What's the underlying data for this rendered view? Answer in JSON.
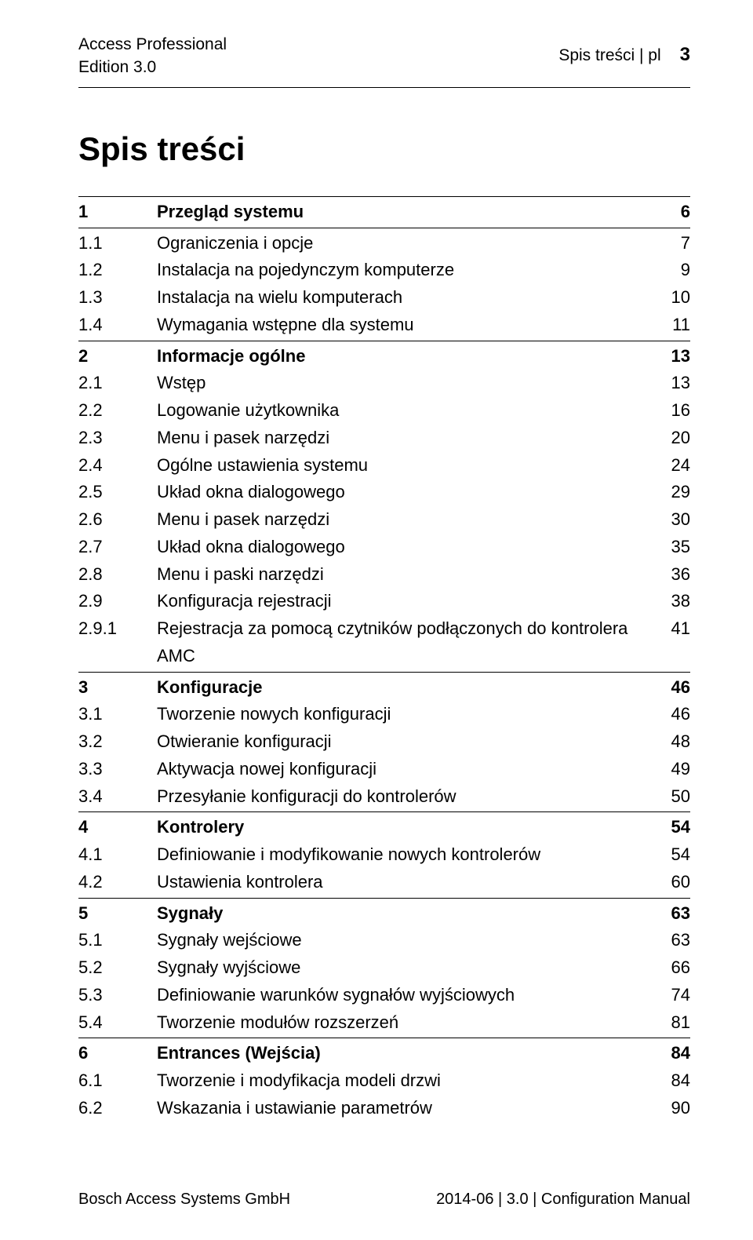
{
  "header": {
    "product_line1": "Access Professional",
    "product_line2": "Edition 3.0",
    "section_label": "Spis treści | pl",
    "page_number": "3"
  },
  "main_title": "Spis treści",
  "toc": [
    {
      "num": "1",
      "label": "Przegląd systemu",
      "page": "6",
      "section": true,
      "rule": "top"
    },
    {
      "num": "1.1",
      "label": "Ograniczenia i opcje",
      "page": "7"
    },
    {
      "num": "1.2",
      "label": "Instalacja na pojedynczym komputerze",
      "page": "9"
    },
    {
      "num": "1.3",
      "label": "Instalacja na wielu komputerach",
      "page": "10"
    },
    {
      "num": "1.4",
      "label": "Wymagania wstępne dla systemu",
      "page": "11"
    },
    {
      "num": "2",
      "label": "Informacje ogólne",
      "page": "13",
      "section": true,
      "rule": "mid"
    },
    {
      "num": "2.1",
      "label": "Wstęp",
      "page": "13"
    },
    {
      "num": "2.2",
      "label": "Logowanie użytkownika",
      "page": "16"
    },
    {
      "num": "2.3",
      "label": "Menu i pasek narzędzi",
      "page": "20"
    },
    {
      "num": "2.4",
      "label": "Ogólne ustawienia systemu",
      "page": "24"
    },
    {
      "num": "2.5",
      "label": "Układ okna dialogowego",
      "page": "29"
    },
    {
      "num": "2.6",
      "label": "Menu i pasek narzędzi",
      "page": "30"
    },
    {
      "num": "2.7",
      "label": "Układ okna dialogowego",
      "page": "35"
    },
    {
      "num": "2.8",
      "label": "Menu i paski narzędzi",
      "page": "36"
    },
    {
      "num": "2.9",
      "label": "Konfiguracja rejestracji",
      "page": "38"
    },
    {
      "num": "2.9.1",
      "label": "Rejestracja za pomocą czytników podłączonych do kontrolera AMC",
      "page": "41"
    },
    {
      "num": "3",
      "label": "Konfiguracje",
      "page": "46",
      "section": true,
      "rule": "mid"
    },
    {
      "num": "3.1",
      "label": "Tworzenie nowych konfiguracji",
      "page": "46"
    },
    {
      "num": "3.2",
      "label": "Otwieranie konfiguracji",
      "page": "48"
    },
    {
      "num": "3.3",
      "label": "Aktywacja nowej konfiguracji",
      "page": "49"
    },
    {
      "num": "3.4",
      "label": "Przesyłanie konfiguracji do kontrolerów",
      "page": "50"
    },
    {
      "num": "4",
      "label": "Kontrolery",
      "page": "54",
      "section": true,
      "rule": "mid"
    },
    {
      "num": "4.1",
      "label": "Definiowanie i modyfikowanie nowych kontrolerów",
      "page": "54"
    },
    {
      "num": "4.2",
      "label": "Ustawienia kontrolera",
      "page": "60"
    },
    {
      "num": "5",
      "label": "Sygnały",
      "page": "63",
      "section": true,
      "rule": "mid"
    },
    {
      "num": "5.1",
      "label": "Sygnały wejściowe",
      "page": "63"
    },
    {
      "num": "5.2",
      "label": "Sygnały wyjściowe",
      "page": "66"
    },
    {
      "num": "5.3",
      "label": "Definiowanie warunków sygnałów wyjściowych",
      "page": "74"
    },
    {
      "num": "5.4",
      "label": "Tworzenie modułów rozszerzeń",
      "page": "81"
    },
    {
      "num": "6",
      "label": "Entrances (Wejścia)",
      "page": "84",
      "section": true,
      "rule": "mid"
    },
    {
      "num": "6.1",
      "label": "Tworzenie i modyfikacja modeli drzwi",
      "page": "84"
    },
    {
      "num": "6.2",
      "label": "Wskazania i ustawianie parametrów",
      "page": "90"
    }
  ],
  "footer": {
    "left": "Bosch Access Systems GmbH",
    "right": "2014-06 | 3.0 | Configuration Manual"
  }
}
